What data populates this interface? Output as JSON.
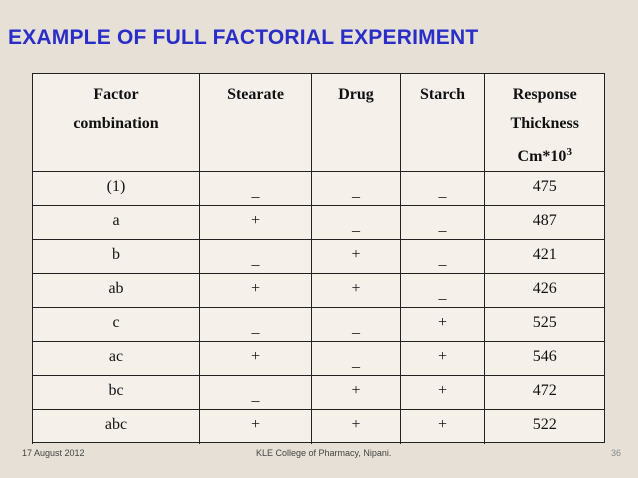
{
  "slide": {
    "title": "EXAMPLE OF FULL FACTORIAL EXPERIMENT",
    "footer_date": "17 August 2012",
    "footer_org": "KLE College of Pharmacy, Nipani.",
    "page_number": "36"
  },
  "table": {
    "headers": {
      "factor_line1": "Factor",
      "factor_line2": "combination",
      "stearate": "Stearate",
      "drug": "Drug",
      "starch": "Starch",
      "response_line1": "Response",
      "response_line2": "Thickness",
      "response_line3": "Cm*10",
      "response_exp": "3"
    },
    "rows": [
      {
        "combo": "(1)",
        "stearate": "_",
        "drug": "_",
        "starch": "_",
        "response": "475"
      },
      {
        "combo": "a",
        "stearate": "+",
        "drug": "_",
        "starch": "_",
        "response": "487"
      },
      {
        "combo": "b",
        "stearate": "_",
        "drug": "+",
        "starch": "_",
        "response": "421"
      },
      {
        "combo": "ab",
        "stearate": "+",
        "drug": "+",
        "starch": "_",
        "response": "426"
      },
      {
        "combo": "c",
        "stearate": "_",
        "drug": "_",
        "starch": "+",
        "response": "525"
      },
      {
        "combo": "ac",
        "stearate": "+",
        "drug": "_",
        "starch": "+",
        "response": "546"
      },
      {
        "combo": "bc",
        "stearate": "_",
        "drug": "+",
        "starch": "+",
        "response": "472"
      },
      {
        "combo": "abc",
        "stearate": "+",
        "drug": "+",
        "starch": "+",
        "response": "522"
      }
    ]
  }
}
